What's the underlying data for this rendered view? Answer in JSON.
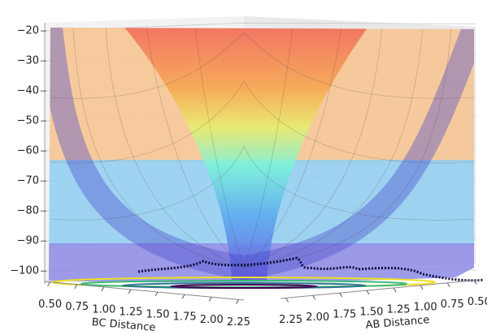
{
  "chart_data": {
    "type": "surface3d",
    "x_label": "BC Distance",
    "y_label": "AB Distance",
    "xlim": [
      0.45,
      2.3
    ],
    "xticks": [
      {
        "value": 0.5,
        "label": "0.50"
      },
      {
        "value": 0.75,
        "label": "0.75"
      },
      {
        "value": 1.0,
        "label": "1.00"
      },
      {
        "value": 1.25,
        "label": "1.25"
      },
      {
        "value": 1.5,
        "label": "1.50"
      },
      {
        "value": 1.75,
        "label": "1.75"
      },
      {
        "value": 2.0,
        "label": "2.00"
      },
      {
        "value": 2.25,
        "label": "2.25"
      }
    ],
    "ylim": [
      0.45,
      2.3
    ],
    "yticks": [
      {
        "value": 0.5,
        "label": "0.50"
      },
      {
        "value": 0.75,
        "label": "0.75"
      },
      {
        "value": 1.0,
        "label": "1.00"
      },
      {
        "value": 1.25,
        "label": "1.25"
      },
      {
        "value": 1.5,
        "label": "1.50"
      },
      {
        "value": 1.75,
        "label": "1.75"
      },
      {
        "value": 2.0,
        "label": "2.00"
      },
      {
        "value": 2.25,
        "label": "2.25"
      }
    ],
    "zlim": [
      -104,
      -17
    ],
    "zticks": [
      {
        "value": -20,
        "label": "−20"
      },
      {
        "value": -30,
        "label": "−30"
      },
      {
        "value": -40,
        "label": "−40"
      },
      {
        "value": -50,
        "label": "−50"
      },
      {
        "value": -60,
        "label": "−60"
      },
      {
        "value": -70,
        "label": "−70"
      },
      {
        "value": -80,
        "label": "−80"
      },
      {
        "value": -90,
        "label": "−90"
      },
      {
        "value": -100,
        "label": "−100"
      }
    ],
    "grid": true
  }
}
